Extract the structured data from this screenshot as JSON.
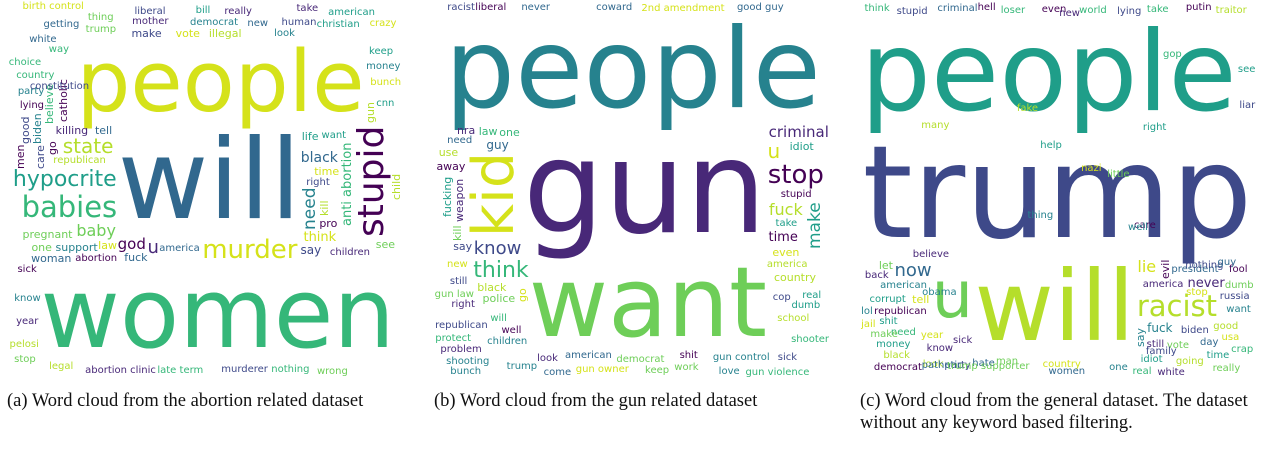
{
  "figure": {
    "panels": [
      {
        "caption": "(a) Word cloud from the abortion related dataset",
        "words": [
          "abortion",
          "will",
          "women",
          "people",
          "right",
          "want",
          "republican",
          "children",
          "democrat",
          "trump",
          "stupid",
          "america",
          "babies",
          "murder",
          "liberal",
          "hypocrite",
          "state",
          "u",
          "need",
          "baby",
          "god",
          "black",
          "anti abortion",
          "think",
          "say",
          "life",
          "kill",
          "killing",
          "support",
          "pregnant",
          "catholic",
          "woman",
          "country",
          "time",
          "care",
          "american",
          "illegal",
          "abortion clinic",
          "biden",
          "see",
          "pro",
          "fuck",
          "believe",
          "vote",
          "make",
          "keep",
          "gun",
          "really",
          "know",
          "one",
          "men",
          "tell",
          "way",
          "birth control",
          "human",
          "cnn",
          "legal",
          "year",
          "money",
          "thing",
          "lying",
          "getting",
          "nothing",
          "bunch",
          "murderer",
          "christian",
          "child",
          "mother",
          "party",
          "wrong",
          "go",
          "white",
          "choice",
          "law",
          "good",
          "bill",
          "pelosi",
          "take",
          "look",
          "stop",
          "sick",
          "new",
          "late term",
          "crazy",
          "constitution"
        ]
      },
      {
        "caption": "(b) Word cloud from the gun related dataset",
        "words": [
          "gun",
          "people",
          "want",
          "stupid",
          "need",
          "will",
          "kid",
          "cop",
          "take",
          "america",
          "right",
          "trump",
          "gun law",
          "stop",
          "american",
          "think",
          "u",
          "know",
          "make",
          "fuck",
          "criminal",
          "gun control",
          "democrat",
          "time",
          "guy",
          "one",
          "go",
          "republican",
          "idiot",
          "country",
          "weapon",
          "shooting",
          "police",
          "liberal",
          "never",
          "protect",
          "even",
          "say",
          "fucking",
          "school",
          "nra",
          "love",
          "kill",
          "away",
          "coward",
          "shooter",
          "gun owner",
          "sick",
          "dumb",
          "black",
          "problem",
          "children",
          "work",
          "shit",
          "good guy",
          "gun violence",
          "2nd amendment",
          "racist",
          "real",
          "use",
          "look",
          "bunch",
          "keep",
          "well",
          "come",
          "law",
          "new",
          "still"
        ]
      },
      {
        "caption": "(c) Word cloud from the general dataset. The dataset without any keyword based filtering.",
        "words": [
          "trump",
          "people",
          "will",
          "america",
          "american",
          "u",
          "democrat",
          "president",
          "need",
          "country",
          "stupid",
          "idiot",
          "racist",
          "know",
          "one",
          "vote",
          "republican",
          "now",
          "think",
          "lie",
          "lying",
          "time",
          "going",
          "never",
          "fuck",
          "man",
          "evil",
          "hate",
          "loser",
          "tell",
          "biden",
          "corrupt",
          "black",
          "white",
          "say",
          "really",
          "putin",
          "criminal",
          "world",
          "year",
          "party",
          "shit",
          "traitor",
          "sick",
          "want",
          "let",
          "even",
          "day",
          "take",
          "jail",
          "russia",
          "money",
          "good",
          "back",
          "lol",
          "dumb",
          "fool",
          "women",
          "real",
          "usa",
          "nothing",
          "right",
          "look",
          "believe",
          "thing",
          "make",
          "care",
          "pathetic",
          "crap",
          "stop",
          "liar",
          "see",
          "many",
          "still",
          "well",
          "little",
          "hell",
          "guy",
          "gop",
          "nazi",
          "family",
          "help",
          "fake",
          "new",
          "obama",
          "trump supporter"
        ]
      }
    ],
    "palette": [
      "#440154",
      "#482878",
      "#3e4989",
      "#31688e",
      "#26828e",
      "#1f9e89",
      "#35b779",
      "#6ece58",
      "#b5de2b",
      "#d5e21a"
    ]
  }
}
